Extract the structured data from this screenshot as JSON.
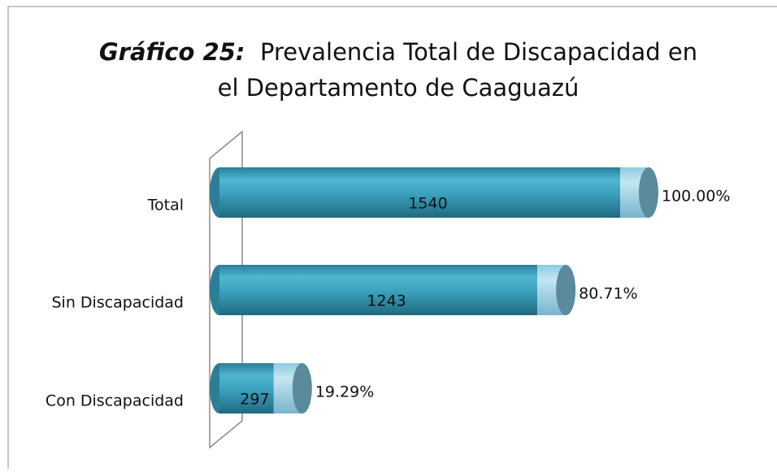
{
  "chart_data": {
    "type": "bar",
    "orientation": "horizontal",
    "style": "cylinder",
    "title_label": "Gráfico 25:",
    "title": "Prevalencia Total de Discapacidad en el Departamento de Caaguazú",
    "categories": [
      "Total",
      "Sin Discapacidad",
      "Con Discapacidad"
    ],
    "values": [
      1540,
      1243,
      297
    ],
    "percent_values": [
      100.0,
      80.71,
      19.29
    ],
    "percent_labels": [
      "100.00%",
      "80.71%",
      "19.29%"
    ],
    "color": "#3ea3bf"
  }
}
